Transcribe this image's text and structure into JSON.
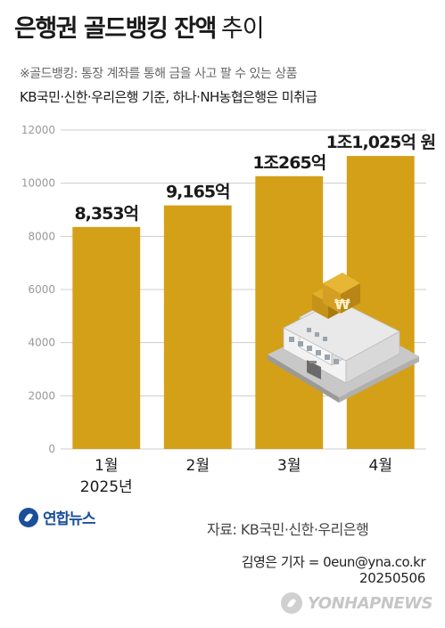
{
  "title": {
    "main": "은행권 골드뱅킹 잔액",
    "sub": "추이"
  },
  "note": "※골드뱅킹: 통장 계좌를 통해 금을 사고 팔 수 있는 상품",
  "basis": "KB국민·신한·우리은행 기준, 하나·NH농협은행은 미취급",
  "chart_data": {
    "type": "bar",
    "categories": [
      "1월",
      "2월",
      "3월",
      "4월"
    ],
    "year_label": "2025년",
    "values": [
      8353,
      9165,
      10265,
      11025
    ],
    "value_labels": [
      "8,353억",
      "9,165억",
      "1조265억",
      "1조1,025억 원"
    ],
    "ylim": [
      0,
      12000
    ],
    "yticks": [
      0,
      2000,
      4000,
      6000,
      8000,
      10000,
      12000
    ],
    "grid": true,
    "bar_color": "#d4a017",
    "grid_color": "#cccccc"
  },
  "illustration": {
    "icon": "bank-building-won-icon",
    "sign": "₩"
  },
  "source": "자료: KB국민·신한·우리은행",
  "reporter": "김영은 기자 = 0eun@yna.co.kr",
  "date": "20250506",
  "logo": {
    "text": "연합뉴스",
    "color": "#1b4f9a"
  },
  "watermark": {
    "text": "YONHAPNEWS"
  }
}
